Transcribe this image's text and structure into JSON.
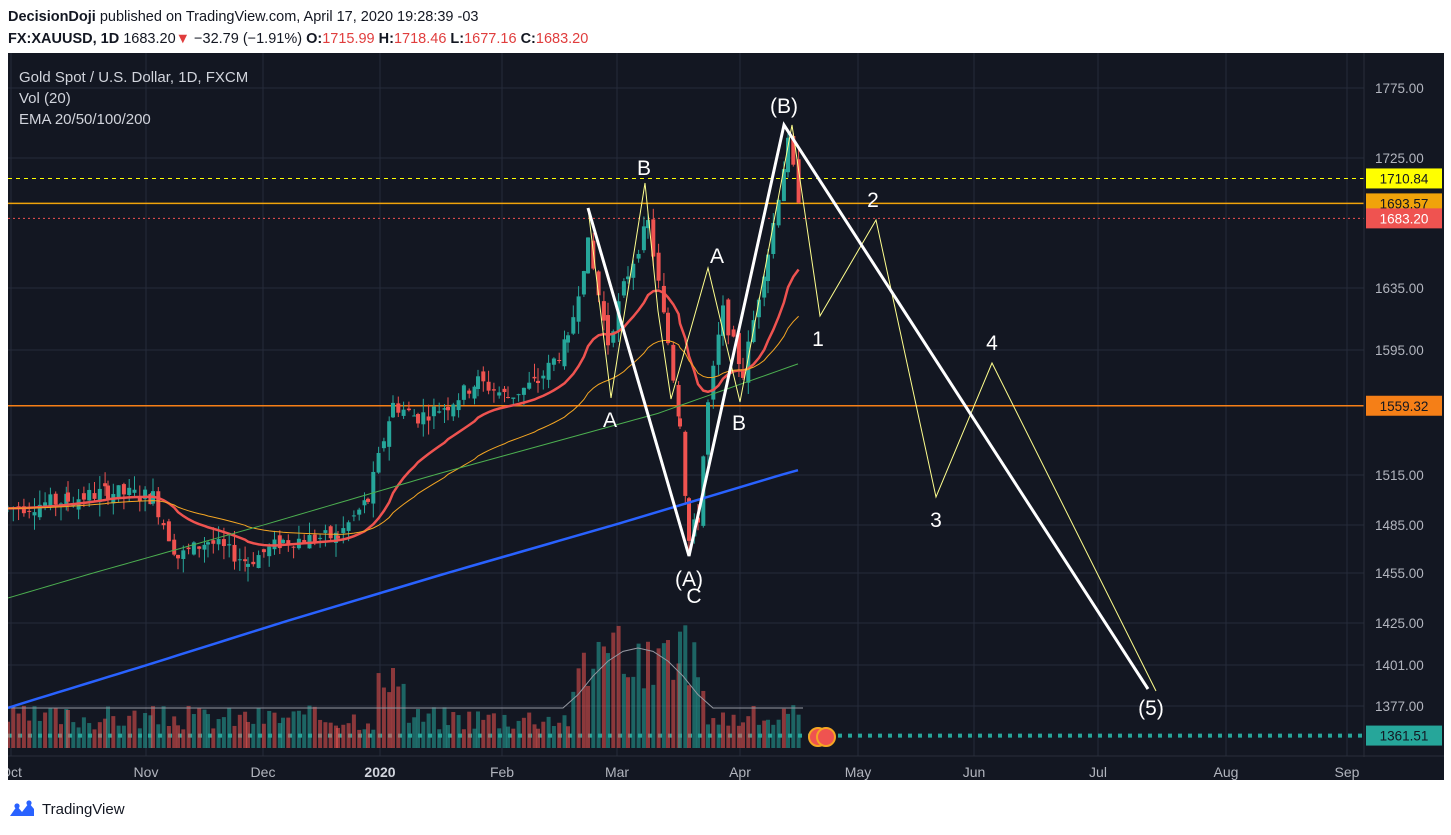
{
  "header": {
    "author": "DecisionDoji",
    "published": "published on TradingView.com, April 17, 2020 19:28:39 -03",
    "symbol": "FX:XAUUSD, 1D",
    "last": "1683.20",
    "arrow": "▼",
    "change": "−32.79 (−1.91%)",
    "o_label": "O:",
    "o_val": "1715.99",
    "h_label": "H:",
    "h_val": "1718.46",
    "l_label": "L:",
    "l_val": "1677.16",
    "c_label": "C:",
    "c_val": "1683.20"
  },
  "legend": {
    "title": "Gold Spot / U.S. Dollar, 1D, FXCM",
    "vol": "Vol (20)",
    "ema": "EMA 20/50/100/200"
  },
  "footer": {
    "brand": "TradingView"
  },
  "chart_data": {
    "type": "candlestick",
    "title": "Gold Spot / U.S. Dollar, 1D, FXCM",
    "y_ticks": [
      1775,
      1725,
      1635,
      1595,
      1515,
      1485,
      1455,
      1425,
      1401,
      1377
    ],
    "y_tick_labels": [
      "1775.00",
      "1725.00",
      "1635.00",
      "1595.00",
      "1515.00",
      "1485.00",
      "1455.00",
      "1425.00",
      "1401.00",
      "1377.00"
    ],
    "x_labels": [
      "Oct",
      "Nov",
      "Dec",
      "2020",
      "Feb",
      "Mar",
      "Apr",
      "May",
      "Jun",
      "Jul",
      "Aug",
      "Sep"
    ],
    "price_badges": [
      {
        "label": "1710.84",
        "value": 1710.84,
        "bg": "#ffff00",
        "fg": "#131722"
      },
      {
        "label": "1693.57",
        "value": 1693.57,
        "bg": "#f0a30a",
        "fg": "#131722"
      },
      {
        "label": "1683.20",
        "value": 1683.2,
        "bg": "#ef5350",
        "fg": "#ffffff"
      },
      {
        "label": "1559.32",
        "value": 1559.32,
        "bg": "#f57f17",
        "fg": "#131722"
      },
      {
        "label": "1361.51",
        "value": 1361.51,
        "bg": "#26a69a",
        "fg": "#131722"
      }
    ],
    "horizontal_lines": [
      {
        "value": 1693.57,
        "color": "#f0a30a",
        "style": "solid"
      },
      {
        "value": 1559.32,
        "color": "#f57f17",
        "style": "solid"
      },
      {
        "value": 1710.84,
        "color": "#ffff00",
        "style": "dashed"
      },
      {
        "value": 1361.51,
        "color": "#26a69a",
        "style": "dotted"
      }
    ],
    "wave_labels": [
      "(B)",
      "B",
      "A",
      "2",
      "1",
      "A",
      "B",
      "4",
      "3",
      "(A)",
      "C",
      "(5)"
    ],
    "ema_colors": {
      "ema20": "#ef5350",
      "ema50": "#f5a623",
      "ema100": "#4caf50",
      "ema200": "#2962ff"
    },
    "colors": {
      "up": "#26a69a",
      "down": "#ef5350",
      "bg": "#131722",
      "grid": "#262b3a",
      "text": "#b2b5be"
    }
  }
}
